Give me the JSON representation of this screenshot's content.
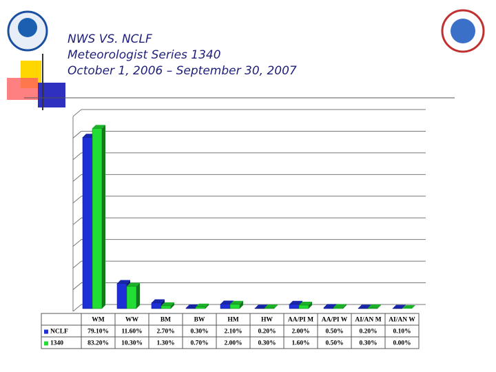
{
  "chart_data": {
    "type": "bar",
    "title_lines": [
      "NWS VS. NCLF",
      "Meteorologist Series 1340",
      "October 1, 2006 – September 30, 2007"
    ],
    "categories": [
      "WM",
      "WW",
      "BM",
      "BW",
      "HM",
      "HW",
      "AA/PI M",
      "AA/PI W",
      "AI/AN M",
      "AI/AN W"
    ],
    "series": [
      {
        "name": "NCLF",
        "color": "#1d2fd6",
        "values": [
          79.1,
          11.6,
          2.7,
          0.3,
          2.1,
          0.2,
          2.0,
          0.5,
          0.2,
          0.1
        ],
        "value_labels": [
          "79.10%",
          "11.60%",
          "2.70%",
          "0.30%",
          "2.10%",
          "0.20%",
          "2.00%",
          "0.50%",
          "0.20%",
          "0.10%"
        ]
      },
      {
        "name": "1340",
        "color": "#22dd33",
        "values": [
          83.2,
          10.3,
          1.3,
          0.7,
          2.0,
          0.3,
          1.6,
          0.5,
          0.3,
          0.0
        ],
        "value_labels": [
          "83.20%",
          "10.30%",
          "1.30%",
          "0.70%",
          "2.00%",
          "0.30%",
          "1.60%",
          "0.50%",
          "0.30%",
          "0.00%"
        ]
      }
    ],
    "ylim": [
      0,
      90
    ],
    "yticks": [
      0,
      10,
      20,
      30,
      40,
      50,
      60,
      70,
      80,
      90
    ],
    "grid": true
  }
}
